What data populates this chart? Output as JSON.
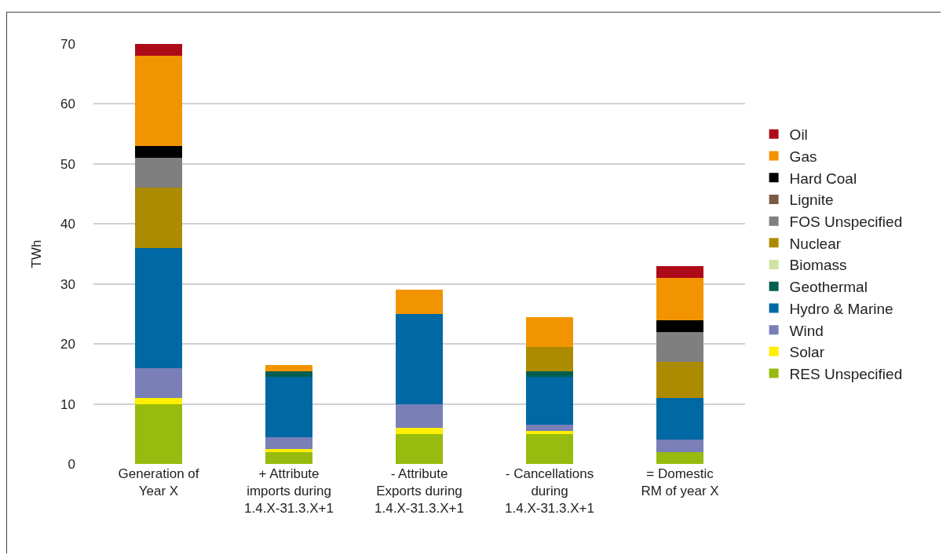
{
  "chart_data": {
    "type": "bar",
    "stacked": true,
    "ylabel": "TWh",
    "categories": [
      "Generation of\nYear X",
      "+ Attribute\nimports during\n1.4.X-31.3.X+1",
      "- Attribute\nExports during\n1.4.X-31.3.X+1",
      "- Cancellations\nduring\n1.4.X-31.3.X+1",
      "= Domestic\nRM of year X"
    ],
    "ylim": [
      0,
      70
    ],
    "yticks": [
      0,
      10,
      20,
      30,
      40,
      50,
      60,
      70
    ],
    "grid": "y",
    "legend": "right",
    "series": [
      {
        "name": "RES Unspecified",
        "color": "#97bb0e",
        "values": [
          10,
          2,
          5,
          5,
          2
        ]
      },
      {
        "name": "Solar",
        "color": "#ffef00",
        "values": [
          1,
          0.5,
          1,
          0.5,
          0
        ]
      },
      {
        "name": "Wind",
        "color": "#7a7fb8",
        "values": [
          5,
          2,
          4,
          1,
          2
        ]
      },
      {
        "name": "Hydro & Marine",
        "color": "#0068a3",
        "values": [
          20,
          10,
          15,
          8,
          7
        ]
      },
      {
        "name": "Geothermal",
        "color": "#005f4f",
        "values": [
          0,
          1,
          0,
          1,
          0
        ]
      },
      {
        "name": "Biomass",
        "color": "#cfe3a0",
        "values": [
          0,
          0,
          0,
          0,
          0
        ]
      },
      {
        "name": "Nuclear",
        "color": "#ad8b00",
        "values": [
          10,
          0,
          0,
          4,
          6
        ]
      },
      {
        "name": "FOS Unspecified",
        "color": "#7f7f7f",
        "values": [
          5,
          0,
          0,
          0,
          5
        ]
      },
      {
        "name": "Lignite",
        "color": "#7a5a45",
        "values": [
          0,
          0,
          0,
          0,
          0
        ]
      },
      {
        "name": "Hard Coal",
        "color": "#000000",
        "values": [
          2,
          0,
          0,
          0,
          2
        ]
      },
      {
        "name": "Gas",
        "color": "#f29400",
        "values": [
          15,
          1,
          4,
          5,
          7
        ]
      },
      {
        "name": "Oil",
        "color": "#ad0a1a",
        "values": [
          2,
          0,
          0,
          0,
          2
        ]
      }
    ]
  }
}
